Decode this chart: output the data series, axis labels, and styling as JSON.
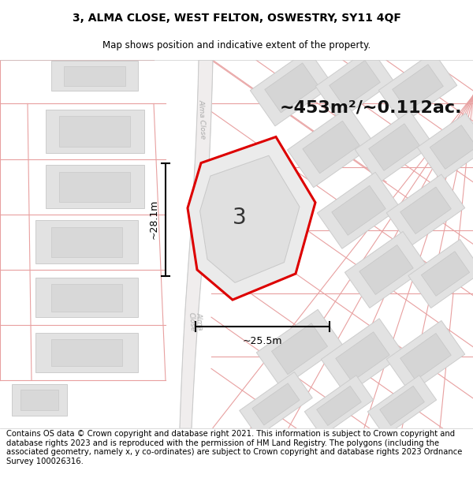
{
  "title": "3, ALMA CLOSE, WEST FELTON, OSWESTRY, SY11 4QF",
  "subtitle": "Map shows position and indicative extent of the property.",
  "footer": "Contains OS data © Crown copyright and database right 2021. This information is subject to Crown copyright and database rights 2023 and is reproduced with the permission of HM Land Registry. The polygons (including the associated geometry, namely x, y co-ordinates) are subject to Crown copyright and database rights 2023 Ordnance Survey 100026316.",
  "area_label": "~453m²/~0.112ac.",
  "width_label": "~25.5m",
  "height_label": "~28.1m",
  "plot_number": "3",
  "road_color": "#e8e0e0",
  "road_line_color": "#e8a0a0",
  "plot_fill": "#ebebeb",
  "plot_outline": "#dd0000",
  "building_fill": "#e2e2e2",
  "building_outline": "#cccccc",
  "dim_color": "#000000",
  "map_bg": "#ffffff",
  "road_label_color": "#aaaaaa",
  "title_fontsize": 10,
  "subtitle_fontsize": 8.5,
  "footer_fontsize": 7.2,
  "area_fontsize": 16,
  "plot_num_fontsize": 20,
  "dim_fontsize": 9
}
